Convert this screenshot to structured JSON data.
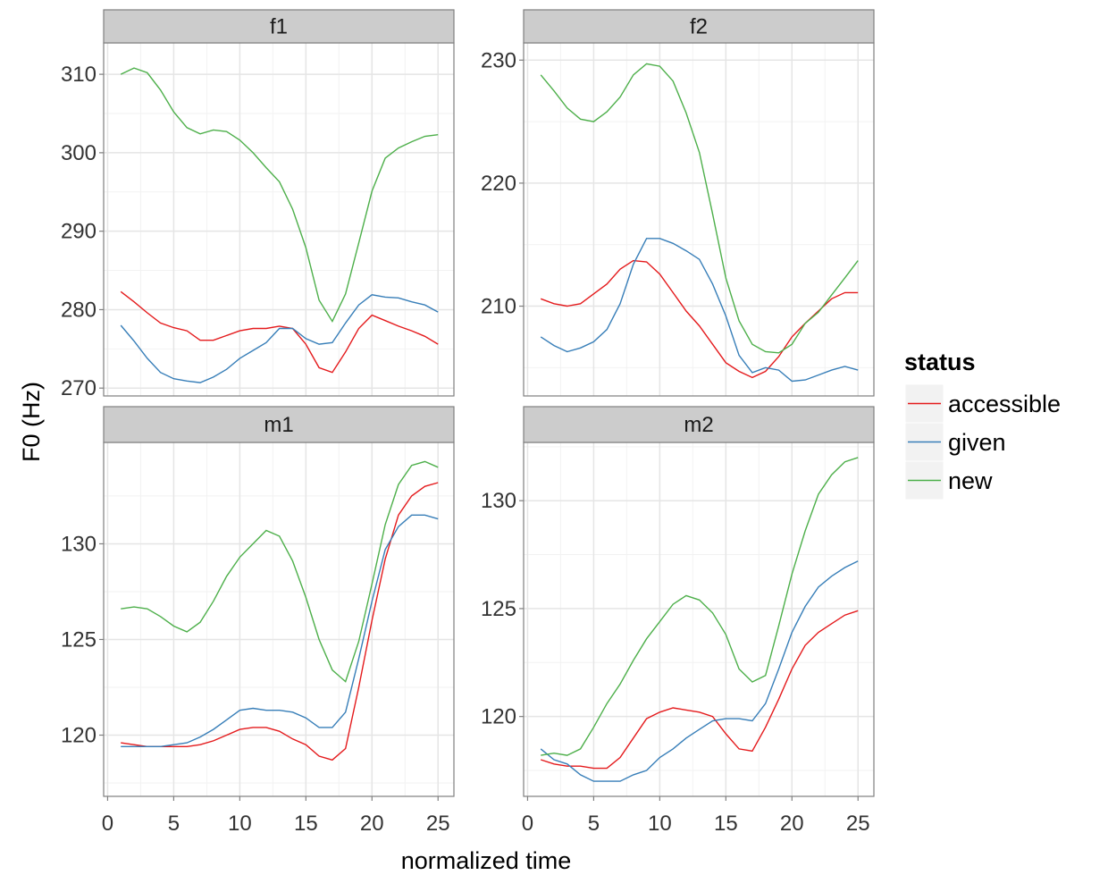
{
  "chart_data": {
    "type": "line",
    "xlabel": "normalized time",
    "ylabel": "F0 (Hz)",
    "legend": {
      "title": "status",
      "position": "right",
      "entries": [
        {
          "name": "accessible",
          "color": "#E41A1C"
        },
        {
          "name": "given",
          "color": "#377EB8"
        },
        {
          "name": "new",
          "color": "#4DAF4A"
        }
      ]
    },
    "grid": true,
    "x": [
      1,
      2,
      3,
      4,
      5,
      6,
      7,
      8,
      9,
      10,
      11,
      12,
      13,
      14,
      15,
      16,
      17,
      18,
      19,
      20,
      21,
      22,
      23,
      24,
      25
    ],
    "xticks": [
      0,
      5,
      10,
      15,
      20,
      25
    ],
    "xlim": [
      -0.3,
      26.2
    ],
    "panels": [
      {
        "title": "f1",
        "ylim": [
          269,
          314
        ],
        "yticks": [
          270,
          280,
          290,
          300,
          310
        ],
        "series": [
          {
            "name": "accessible",
            "values": [
              282.3,
              281.0,
              279.6,
              278.3,
              277.7,
              277.3,
              276.1,
              276.1,
              276.7,
              277.3,
              277.6,
              277.6,
              277.9,
              277.6,
              275.6,
              272.6,
              272.0,
              274.6,
              277.6,
              279.3,
              278.6,
              277.9,
              277.3,
              276.6,
              275.6
            ]
          },
          {
            "name": "given",
            "values": [
              278.0,
              276.0,
              273.8,
              272.0,
              271.2,
              270.9,
              270.7,
              271.4,
              272.4,
              273.8,
              274.8,
              275.8,
              277.6,
              277.6,
              276.3,
              275.6,
              275.8,
              278.3,
              280.6,
              281.9,
              281.6,
              281.5,
              281.0,
              280.6,
              279.7
            ]
          },
          {
            "name": "new",
            "values": [
              310.0,
              310.8,
              310.2,
              308.0,
              305.2,
              303.2,
              302.4,
              302.9,
              302.7,
              301.6,
              300.0,
              298.1,
              296.3,
              292.8,
              287.9,
              281.2,
              278.5,
              282.0,
              288.5,
              295.1,
              299.3,
              300.6,
              301.4,
              302.1,
              302.3
            ]
          }
        ]
      },
      {
        "title": "f2",
        "ylim": [
          202.7,
          231.4
        ],
        "yticks": [
          210,
          220,
          230
        ],
        "series": [
          {
            "name": "accessible",
            "values": [
              210.6,
              210.2,
              210.0,
              210.2,
              211.0,
              211.8,
              213.0,
              213.7,
              213.6,
              212.6,
              211.1,
              209.6,
              208.4,
              206.9,
              205.4,
              204.7,
              204.2,
              204.7,
              205.9,
              207.5,
              208.6,
              209.6,
              210.6,
              211.1,
              211.1
            ]
          },
          {
            "name": "given",
            "values": [
              207.5,
              206.8,
              206.3,
              206.6,
              207.1,
              208.1,
              210.2,
              213.4,
              215.5,
              215.5,
              215.1,
              214.5,
              213.8,
              211.8,
              209.2,
              206.0,
              204.6,
              205.0,
              204.8,
              203.9,
              204.0,
              204.4,
              204.8,
              205.1,
              204.8
            ]
          },
          {
            "name": "new",
            "values": [
              228.8,
              227.5,
              226.1,
              225.2,
              225.0,
              225.8,
              227.0,
              228.8,
              229.7,
              229.5,
              228.3,
              225.7,
              222.5,
              217.5,
              212.3,
              208.8,
              206.9,
              206.3,
              206.2,
              206.9,
              208.6,
              209.5,
              210.9,
              212.3,
              213.7
            ]
          }
        ]
      },
      {
        "title": "m1",
        "ylim": [
          116.8,
          135.3
        ],
        "yticks": [
          120,
          125,
          130
        ],
        "series": [
          {
            "name": "accessible",
            "values": [
              119.6,
              119.5,
              119.4,
              119.4,
              119.4,
              119.4,
              119.5,
              119.7,
              120.0,
              120.3,
              120.4,
              120.4,
              120.2,
              119.8,
              119.5,
              118.9,
              118.7,
              119.3,
              122.5,
              126.0,
              129.2,
              131.5,
              132.5,
              133.0,
              133.2
            ]
          },
          {
            "name": "given",
            "values": [
              119.4,
              119.4,
              119.4,
              119.4,
              119.5,
              119.6,
              119.9,
              120.3,
              120.8,
              121.3,
              121.4,
              121.3,
              121.3,
              121.2,
              120.9,
              120.4,
              120.4,
              121.2,
              124.0,
              127.0,
              129.7,
              130.9,
              131.5,
              131.5,
              131.3
            ]
          },
          {
            "name": "new",
            "values": [
              126.6,
              126.7,
              126.6,
              126.2,
              125.7,
              125.4,
              125.9,
              127.0,
              128.3,
              129.3,
              130.0,
              130.7,
              130.4,
              129.1,
              127.2,
              125.0,
              123.4,
              122.8,
              124.9,
              127.9,
              131.0,
              133.1,
              134.1,
              134.3,
              134.0
            ]
          }
        ]
      },
      {
        "title": "m2",
        "ylim": [
          116.3,
          132.7
        ],
        "yticks": [
          120,
          125,
          130
        ],
        "series": [
          {
            "name": "accessible",
            "values": [
              118.0,
              117.8,
              117.7,
              117.7,
              117.6,
              117.6,
              118.1,
              119.0,
              119.9,
              120.2,
              120.4,
              120.3,
              120.2,
              120.0,
              119.2,
              118.5,
              118.4,
              119.5,
              120.8,
              122.2,
              123.3,
              123.9,
              124.3,
              124.7,
              124.9
            ]
          },
          {
            "name": "given",
            "values": [
              118.5,
              118.0,
              117.8,
              117.3,
              117.0,
              117.0,
              117.0,
              117.3,
              117.5,
              118.1,
              118.5,
              119.0,
              119.4,
              119.8,
              119.9,
              119.9,
              119.8,
              120.6,
              122.2,
              123.9,
              125.1,
              126.0,
              126.5,
              126.9,
              127.2
            ]
          },
          {
            "name": "new",
            "values": [
              118.2,
              118.3,
              118.2,
              118.5,
              119.5,
              120.6,
              121.5,
              122.6,
              123.6,
              124.4,
              125.2,
              125.6,
              125.4,
              124.8,
              123.8,
              122.2,
              121.6,
              121.9,
              124.2,
              126.6,
              128.6,
              130.3,
              131.2,
              131.8,
              132.0
            ]
          }
        ]
      }
    ]
  }
}
